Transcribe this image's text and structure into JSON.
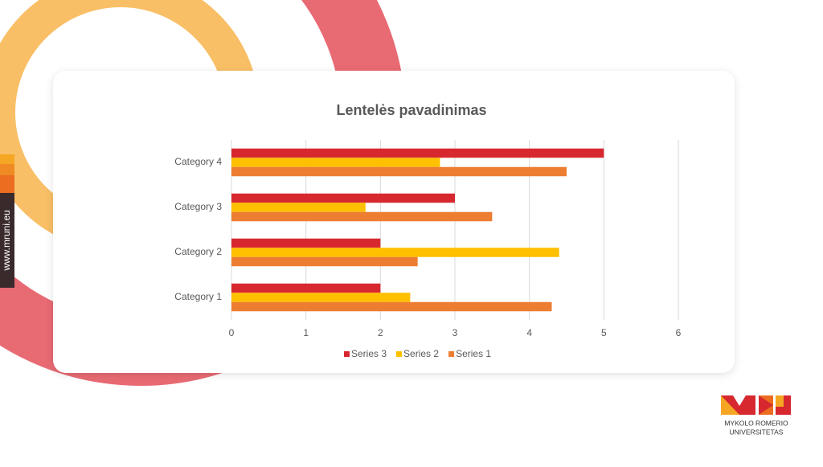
{
  "chart_data": {
    "type": "bar",
    "orientation": "horizontal",
    "title": "Lentelės pavadinimas",
    "categories": [
      "Category 1",
      "Category 2",
      "Category 3",
      "Category 4"
    ],
    "series": [
      {
        "name": "Series 3",
        "color": "#d7282f",
        "values": [
          2,
          2,
          3,
          5
        ]
      },
      {
        "name": "Series 2",
        "color": "#ffc000",
        "values": [
          2.4,
          4.4,
          1.8,
          2.8
        ]
      },
      {
        "name": "Series 1",
        "color": "#ed7d31",
        "values": [
          4.3,
          2.5,
          3.5,
          4.5
        ]
      }
    ],
    "xlim": [
      0,
      6
    ],
    "xticks": [
      0,
      1,
      2,
      3,
      4,
      5,
      6
    ],
    "grid": true,
    "legend": "bottom"
  },
  "side_label": "www.mruni.eu",
  "logo": {
    "line1": "MYKOLO ROMERIO",
    "line2": "UNIVERSITETAS"
  }
}
